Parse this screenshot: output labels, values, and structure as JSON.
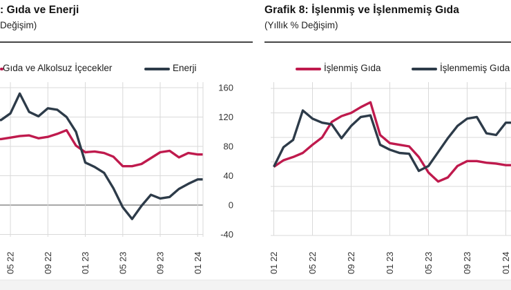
{
  "page": {
    "background": "#ffffff",
    "footer_band_color": "#f3f3f3"
  },
  "colors": {
    "red": "#bf1a4d",
    "dark": "#2d3b49",
    "grid": "#d9d9d9",
    "zero_line": "#8a8a8a",
    "rule": "#454545",
    "tick_text": "#333333"
  },
  "charts": [
    {
      "id": "food-energy",
      "title": ": Gıda ve Enerji",
      "subtitle": "Değişim)",
      "legend": [
        {
          "label": "Gıda ve Alkolsuz İçecekler",
          "color": "#bf1a4d"
        },
        {
          "label": "Enerji",
          "color": "#2d3b49"
        }
      ],
      "chart_data": {
        "type": "line",
        "x": [
          "04 22",
          "05 22",
          "06 22",
          "07 22",
          "08 22",
          "09 22",
          "10 22",
          "11 22",
          "12 22",
          "01 23",
          "02 23",
          "03 23",
          "04 23",
          "05 23",
          "06 23",
          "07 23",
          "08 23",
          "09 23",
          "10 23",
          "11 23",
          "12 23",
          "01 24"
        ],
        "xticks_shown": [
          "05 22",
          "09 22",
          "01 23",
          "05 23",
          "09 23",
          "01 24"
        ],
        "yticks": [
          160,
          120,
          80,
          40,
          0,
          -40
        ],
        "ylim": [
          -40,
          170
        ],
        "grid": true,
        "legend_position": "top",
        "note": "panel cropped at left edge; visible series start at 04 22",
        "series": [
          {
            "name": "Gıda ve Alkolsuz İçecekler",
            "color": "#bf1a4d",
            "values": [
              90,
              92,
              94,
              95,
              91,
              93,
              97,
              102,
              81,
              72,
              73,
              71,
              66,
              53,
              53,
              56,
              64,
              72,
              74,
              65,
              71,
              69
            ]
          },
          {
            "name": "Enerji",
            "color": "#2d3b49",
            "values": [
              116,
              125,
              152,
              127,
              121,
              132,
              130,
              120,
              100,
              58,
              52,
              44,
              23,
              -3,
              -19,
              -1,
              14,
              9,
              11,
              22,
              29,
              35
            ]
          }
        ]
      }
    },
    {
      "id": "processed-unprocessed-food",
      "title": "Grafik 8: İşlenmiş ve İşlenmemiş Gıda",
      "subtitle": "(Yıllık % Değişim)",
      "legend": [
        {
          "label": "İşlenmiş Gıda",
          "color": "#bf1a4d"
        },
        {
          "label": "İşlenmemiş Gıda",
          "color": "#2d3b49"
        }
      ],
      "chart_data": {
        "type": "line",
        "x": [
          "01 22",
          "02 22",
          "03 22",
          "04 22",
          "05 22",
          "06 22",
          "07 22",
          "08 22",
          "09 22",
          "10 22",
          "11 22",
          "12 22",
          "01 23",
          "02 23",
          "03 23",
          "04 23",
          "05 23",
          "06 23",
          "07 23",
          "08 23",
          "09 23",
          "10 23",
          "11 23",
          "12 23",
          "01 24"
        ],
        "xticks_shown": [
          "01 22",
          "05 22",
          "09 22",
          "01 23",
          "05 23",
          "09 23",
          "01 24"
        ],
        "yticks": [],
        "yticks_labels_visible": false,
        "ylim": [
          -30,
          150
        ],
        "grid": true,
        "legend_position": "top",
        "note": "y-axis labels cropped at right edge of image; values estimated from gridlines",
        "series": [
          {
            "name": "İşlenmiş Gıda",
            "color": "#bf1a4d",
            "values": [
              54,
              62,
              66,
              71,
              81,
              90,
              109,
              116,
              120,
              127,
              133,
              93,
              83,
              81,
              79,
              66,
              47,
              36,
              41,
              55,
              61,
              61,
              59,
              58,
              56
            ]
          },
          {
            "name": "İşlenmemiş Gıda",
            "color": "#2d3b49",
            "values": [
              54,
              78,
              87,
              123,
              113,
              108,
              106,
              89,
              104,
              115,
              117,
              81,
              75,
              71,
              70,
              49,
              55,
              72,
              89,
              104,
              113,
              115,
              95,
              93,
              108
            ]
          }
        ]
      }
    }
  ]
}
